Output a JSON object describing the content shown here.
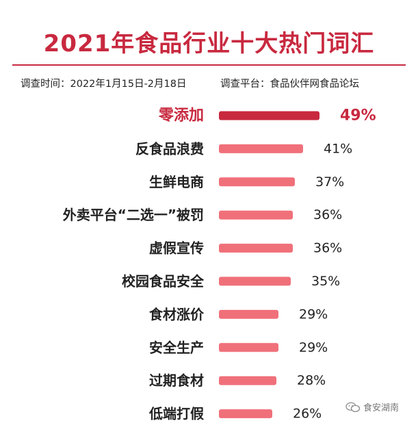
{
  "title": "2021年食品行业十大热门词汇",
  "meta": {
    "period": "调查时间：2022年1月15日-2月18日",
    "platform": "调查平台：食品伙伴网食品论坛"
  },
  "watermark": {
    "text": "食安湖南",
    "icon": "wechat-icon"
  },
  "colors": {
    "accent": "#c8293f",
    "bar": "#f0707a",
    "text": "#222222"
  },
  "chart_data": {
    "type": "bar",
    "orientation": "horizontal",
    "categories": [
      "零添加",
      "反食品浪费",
      "生鲜电商",
      "外卖平台“二选一”被罚",
      "虚假宣传",
      "校园食品安全",
      "食材涨价",
      "安全生产",
      "过期食材",
      "低端打假"
    ],
    "values": [
      49,
      41,
      37,
      36,
      36,
      35,
      29,
      29,
      28,
      26
    ],
    "value_labels": [
      "49%",
      "41%",
      "37%",
      "36%",
      "36%",
      "35%",
      "29%",
      "29%",
      "28%",
      "26%"
    ],
    "unit": "%",
    "highlight_index": 0,
    "grid": false,
    "legend": "none"
  }
}
